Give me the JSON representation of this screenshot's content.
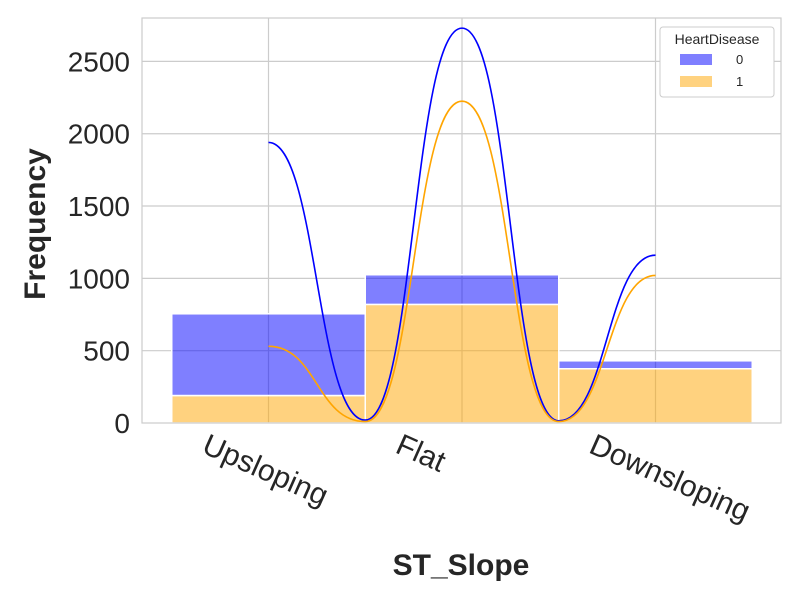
{
  "chart_data": {
    "type": "bar",
    "stacked": true,
    "xlabel": "ST_Slope",
    "ylabel": "Frequency",
    "categories": [
      "Upsloping",
      "Flat",
      "Downsloping"
    ],
    "ylim": [
      0,
      2800
    ],
    "yticks": [
      0,
      500,
      1000,
      1500,
      2000,
      2500
    ],
    "grid": true,
    "legend": {
      "title": "HeartDisease",
      "placement": "top-right",
      "entries": [
        "0",
        "1"
      ]
    },
    "series": [
      {
        "name": "1",
        "values": [
          190,
          820,
          375
        ],
        "color": "#ffa500"
      },
      {
        "name": "0",
        "values": [
          565,
          205,
          55
        ],
        "color": "#0000ff"
      }
    ],
    "kde": [
      {
        "name": "0",
        "color": "#0000ff",
        "points": [
          [
            0,
            1940
          ],
          [
            0.5,
            20
          ],
          [
            1,
            2730
          ],
          [
            1.5,
            15
          ],
          [
            2,
            1160
          ]
        ]
      },
      {
        "name": "1",
        "color": "#ffa500",
        "points": [
          [
            0,
            530
          ],
          [
            0.5,
            10
          ],
          [
            1,
            2225
          ],
          [
            1.5,
            10
          ],
          [
            2,
            1020
          ]
        ]
      }
    ]
  }
}
